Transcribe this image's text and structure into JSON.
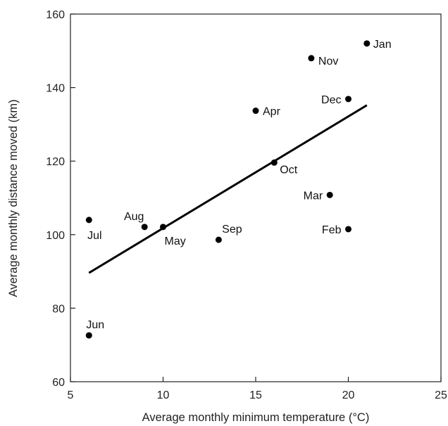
{
  "chart_data": {
    "type": "scatter",
    "title": "",
    "xlabel": "Average monthly minimum temperature (°C)",
    "ylabel": "Average monthly distance moved (km)",
    "xlim": [
      5,
      25
    ],
    "ylim": [
      60,
      160
    ],
    "x_ticks": [
      5,
      10,
      15,
      20,
      25
    ],
    "y_ticks": [
      60,
      80,
      100,
      120,
      140,
      160
    ],
    "grid": false,
    "points": [
      {
        "label": "Jan",
        "x": 21,
        "y": 152
      },
      {
        "label": "Feb",
        "x": 20,
        "y": 101.5
      },
      {
        "label": "Mar",
        "x": 19,
        "y": 110.8
      },
      {
        "label": "Apr",
        "x": 15,
        "y": 133.7
      },
      {
        "label": "May",
        "x": 10,
        "y": 102.1
      },
      {
        "label": "Jun",
        "x": 6,
        "y": 72.6
      },
      {
        "label": "Jul",
        "x": 6,
        "y": 104
      },
      {
        "label": "Aug",
        "x": 9,
        "y": 102.1
      },
      {
        "label": "Sep",
        "x": 13,
        "y": 98.6
      },
      {
        "label": "Oct",
        "x": 16,
        "y": 119.6
      },
      {
        "label": "Nov",
        "x": 18,
        "y": 148
      },
      {
        "label": "Dec",
        "x": 20,
        "y": 136.9
      }
    ],
    "trend_line": {
      "x": [
        6,
        21
      ],
      "y": [
        89.6,
        135.2
      ]
    }
  }
}
